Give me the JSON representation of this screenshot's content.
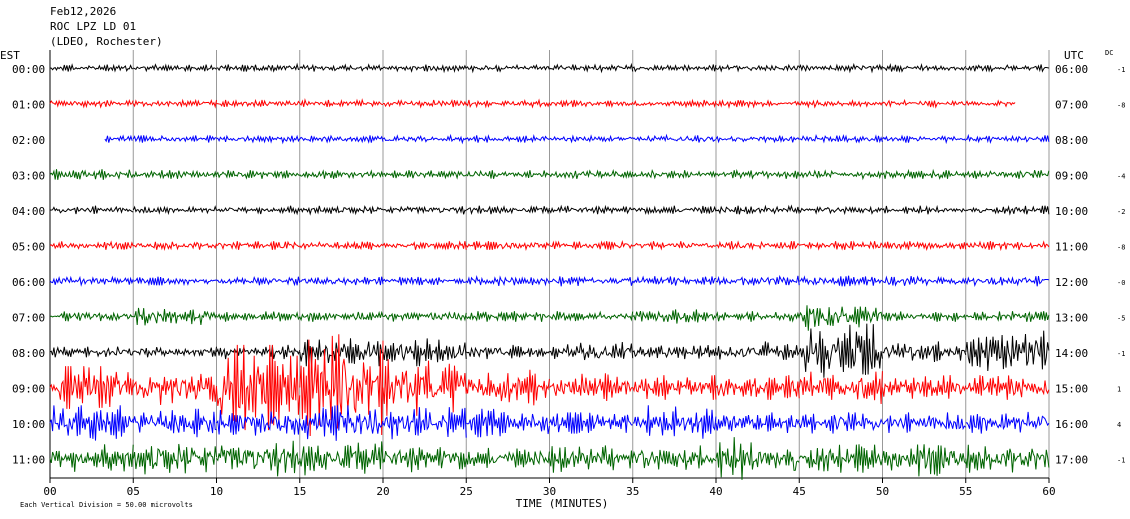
{
  "chart_data": {
    "type": "helicorder",
    "title": "Feb12,2026",
    "subtitle": "ROC LPZ LD 01",
    "station": "(LDEO, Rochester)",
    "left_axis_label": "EST",
    "right_axis_label": "UTC",
    "dc_label": "DC",
    "xlabel": "TIME (MINUTES)",
    "note": "Each Vertical Division =  50.00 microvolts",
    "xlim": [
      0,
      60
    ],
    "xticks": [
      {
        "value": 0,
        "label": "00"
      },
      {
        "value": 5,
        "label": "05"
      },
      10,
      15,
      20,
      25,
      30,
      35,
      40,
      45,
      50,
      55,
      60
    ],
    "grid": true,
    "rows": [
      {
        "est": "00:00",
        "utc": "06:00",
        "dc": "-1",
        "color": "#000000",
        "start": 0,
        "end": 60,
        "values": [
          0.1,
          0.1,
          0.1,
          0.1,
          0.1,
          0.1,
          0.1,
          0.1,
          0.1,
          0.1,
          0.1,
          0.1
        ]
      },
      {
        "est": "01:00",
        "utc": "07:00",
        "dc": "-8",
        "color": "#ff0000",
        "start": 0,
        "end": 58,
        "values": [
          0.1,
          0.1,
          0.1,
          0.1,
          0.1,
          0.1,
          0.1,
          0.1,
          0.1,
          0.1,
          0.1,
          0.1
        ]
      },
      {
        "est": "02:00",
        "utc": "08:00",
        "color": "#0000ff",
        "start": 3.3,
        "end": 60,
        "values": [
          0.1,
          0.1,
          0.1,
          0.1,
          0.1,
          0.1,
          0.1,
          0.1,
          0.1,
          0.1,
          0.1,
          0.1
        ]
      },
      {
        "est": "03:00",
        "utc": "09:00",
        "dc": "-4",
        "color": "#006400",
        "start": 0,
        "end": 60,
        "values": [
          0.15,
          0.12,
          0.12,
          0.12,
          0.12,
          0.12,
          0.12,
          0.12,
          0.12,
          0.12,
          0.12,
          0.12
        ]
      },
      {
        "est": "04:00",
        "utc": "10:00",
        "dc": "-2",
        "color": "#000000",
        "start": 0,
        "end": 60,
        "values": [
          0.12,
          0.12,
          0.12,
          0.12,
          0.12,
          0.12,
          0.12,
          0.12,
          0.12,
          0.12,
          0.12,
          0.12
        ]
      },
      {
        "est": "05:00",
        "utc": "11:00",
        "dc": "-8",
        "color": "#ff0000",
        "start": 0,
        "end": 60,
        "values": [
          0.12,
          0.12,
          0.12,
          0.12,
          0.12,
          0.12,
          0.12,
          0.12,
          0.12,
          0.12,
          0.12,
          0.12
        ]
      },
      {
        "est": "06:00",
        "utc": "12:00",
        "dc": "-0",
        "color": "#0000ff",
        "start": 0,
        "end": 60,
        "values": [
          0.12,
          0.12,
          0.12,
          0.12,
          0.12,
          0.15,
          0.15,
          0.15,
          0.15,
          0.15,
          0.15,
          0.15
        ]
      },
      {
        "est": "07:00",
        "utc": "13:00",
        "dc": "-5",
        "color": "#006400",
        "start": 0,
        "end": 60,
        "values": [
          0.15,
          0.25,
          0.15,
          0.15,
          0.15,
          0.15,
          0.15,
          0.2,
          0.15,
          0.4,
          0.15,
          0.15
        ]
      },
      {
        "est": "08:00",
        "utc": "14:00",
        "dc": "-1",
        "color": "#000000",
        "start": 0,
        "end": 60,
        "values": [
          0.15,
          0.15,
          0.2,
          0.4,
          0.4,
          0.2,
          0.3,
          0.2,
          0.3,
          0.8,
          0.3,
          0.6
        ]
      },
      {
        "est": "09:00",
        "utc": "15:00",
        "dc": "1",
        "color": "#ff0000",
        "start": 0,
        "end": 60,
        "values": [
          0.6,
          0.5,
          1.2,
          1.5,
          0.8,
          0.5,
          0.4,
          0.35,
          0.35,
          0.5,
          0.35,
          0.35
        ]
      },
      {
        "est": "10:00",
        "utc": "16:00",
        "dc": "4",
        "color": "#0000ff",
        "start": 0,
        "end": 60,
        "values": [
          0.5,
          0.4,
          0.4,
          0.5,
          0.5,
          0.4,
          0.3,
          0.5,
          0.3,
          0.3,
          0.3,
          0.4
        ]
      },
      {
        "est": "11:00",
        "utc": "17:00",
        "dc": "-1",
        "color": "#006400",
        "start": 0,
        "end": 60,
        "values": [
          0.4,
          0.5,
          0.5,
          0.5,
          0.4,
          0.3,
          0.4,
          0.4,
          0.6,
          0.4,
          0.5,
          0.4
        ]
      }
    ]
  }
}
